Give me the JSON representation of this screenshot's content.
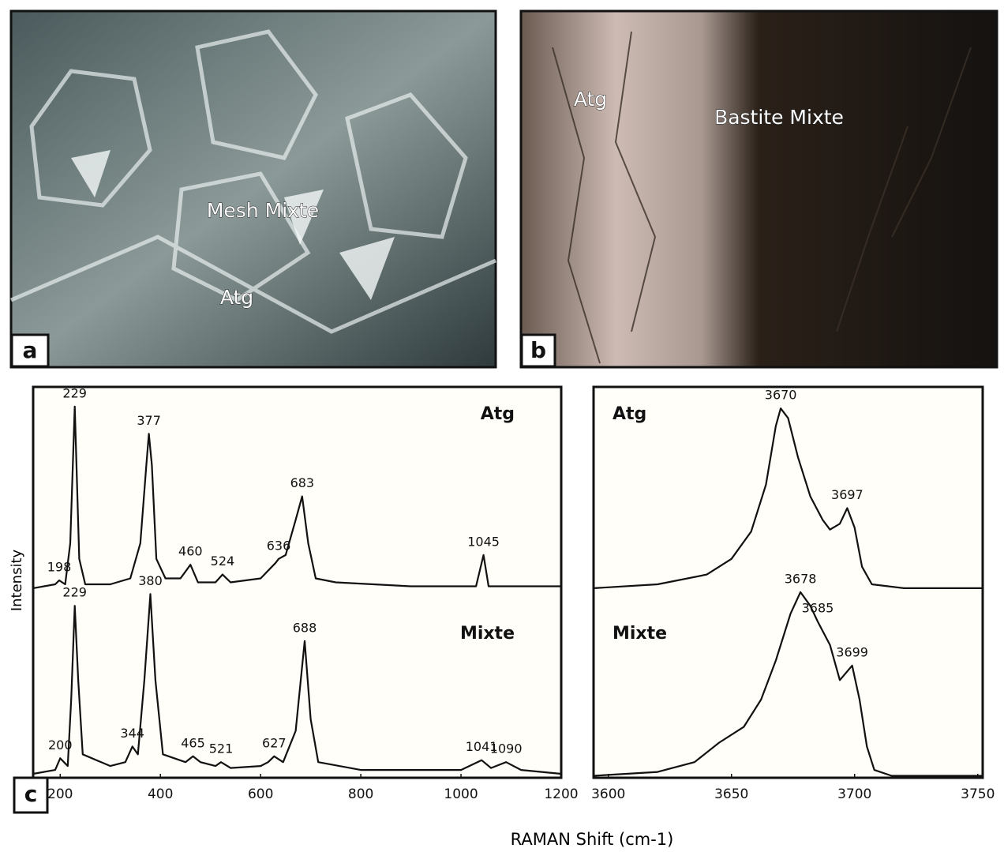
{
  "panels": [
    {
      "letter": "a",
      "labels": [
        "Mesh Mixte",
        "Atg"
      ]
    },
    {
      "letter": "b",
      "labels": [
        "Atg",
        "Bastite Mixte"
      ]
    }
  ],
  "panel_c_letter": "c",
  "axis_labels": {
    "x": "RAMAN Shift (cm-1)",
    "y": "Intensity"
  },
  "chart_data": [
    {
      "type": "line",
      "xlim": [
        146,
        1200
      ],
      "ylim": [
        0,
        100
      ],
      "xticks": [
        200,
        400,
        600,
        800,
        1000,
        1200
      ],
      "series": [
        {
          "name": "Atg",
          "color": "#111111",
          "x": [
            146,
            190,
            198,
            210,
            220,
            229,
            238,
            250,
            300,
            340,
            360,
            372,
            377,
            383,
            392,
            410,
            440,
            460,
            475,
            510,
            524,
            540,
            600,
            630,
            636,
            650,
            670,
            683,
            695,
            710,
            750,
            900,
            1030,
            1045,
            1055,
            1200
          ],
          "values": [
            48.5,
            49.5,
            50.5,
            49.5,
            60,
            95,
            56,
            49.5,
            49.5,
            51,
            60,
            80,
            88,
            80,
            56,
            51,
            51,
            54.5,
            50,
            50,
            52,
            50,
            51,
            55,
            56,
            57,
            66,
            72,
            60,
            51,
            50,
            49,
            49,
            57,
            49,
            49
          ],
          "peak_labels": [
            198,
            229,
            377,
            460,
            524,
            636,
            683,
            1045
          ]
        },
        {
          "name": "Mixte",
          "color": "#111111",
          "x": [
            146,
            190,
            200,
            215,
            222,
            229,
            236,
            245,
            300,
            330,
            344,
            355,
            368,
            380,
            390,
            405,
            450,
            465,
            480,
            510,
            521,
            540,
            600,
            615,
            627,
            645,
            670,
            688,
            700,
            715,
            800,
            1000,
            1041,
            1060,
            1090,
            1120,
            1200
          ],
          "values": [
            1,
            2,
            5,
            3,
            20,
            44,
            25,
            6,
            3,
            4,
            8,
            6,
            25,
            47,
            25,
            6,
            4,
            5.5,
            4,
            3,
            4,
            2.5,
            3,
            4,
            5.5,
            4,
            12,
            35,
            15,
            4,
            2,
            2,
            4.5,
            2.5,
            4,
            2,
            1
          ],
          "peak_labels": [
            200,
            229,
            344,
            380,
            465,
            521,
            627,
            688,
            1041,
            1090
          ]
        }
      ]
    },
    {
      "type": "line",
      "xlim": [
        3594,
        3752
      ],
      "ylim": [
        0,
        100
      ],
      "xticks": [
        3600,
        3650,
        3700,
        3750
      ],
      "series": [
        {
          "name": "Atg",
          "color": "#111111",
          "x": [
            3594,
            3620,
            3640,
            3650,
            3658,
            3664,
            3668,
            3670,
            3673,
            3677,
            3682,
            3687,
            3690,
            3694,
            3697,
            3700,
            3703,
            3707,
            3720,
            3752
          ],
          "values": [
            48.5,
            49.5,
            52,
            56,
            63,
            75,
            90,
            94.5,
            92,
            82,
            72,
            66,
            63.5,
            65,
            69,
            64,
            54,
            49.5,
            48.5,
            48.5
          ],
          "peak_labels": [
            3670,
            3697
          ]
        },
        {
          "name": "Mixte",
          "color": "#111111",
          "x": [
            3594,
            3620,
            3635,
            3645,
            3655,
            3662,
            3668,
            3674,
            3678,
            3682,
            3685,
            3690,
            3694,
            3699,
            3702,
            3705,
            3708,
            3715,
            3752
          ],
          "values": [
            0.5,
            1.5,
            4,
            9,
            13,
            20,
            30,
            42,
            47.5,
            44,
            40,
            34,
            25,
            28.7,
            20,
            8,
            2,
            0.5,
            0.5
          ],
          "peak_labels": [
            3678,
            3685,
            3699
          ]
        }
      ]
    }
  ]
}
